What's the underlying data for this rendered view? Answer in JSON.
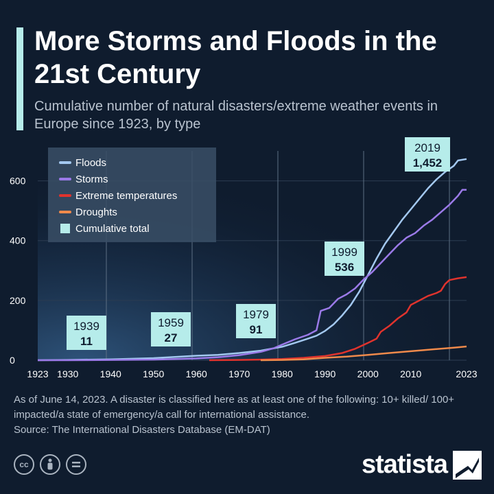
{
  "title": "More Storms and Floods in the 21st Century",
  "subtitle": "Cumulative number of natural disasters/extreme weather events in Europe since 1923, by type",
  "footnote": "As of June 14, 2023. A disaster is classified here as at least one of the following: 10+ killed/ 100+ impacted/a state of emergency/a call for international assistance.",
  "source": "Source: The International Disasters Database (EM-DAT)",
  "icons": [
    "cc-icon",
    "attribution-icon",
    "no-derivatives-icon"
  ],
  "brand": {
    "name": "statista"
  },
  "colors": {
    "background": "#0f1c2e",
    "accent": "#b6ecea",
    "floods": "#a3c8f0",
    "storms": "#9b7ae8",
    "extreme_temperatures": "#e0332d",
    "droughts": "#f08a4b",
    "cumulative_total": "#b6ecea"
  },
  "chart_data": {
    "type": "line",
    "xlabel": "",
    "ylabel": "",
    "xlim": [
      1923,
      2023
    ],
    "ylim": [
      0,
      700
    ],
    "x_ticks": [
      "1923",
      "1930",
      "1940",
      "1950",
      "1960",
      "1970",
      "1980",
      "1990",
      "2000",
      "2010",
      "2023"
    ],
    "x_tick_values": [
      1923,
      1930,
      1940,
      1950,
      1960,
      1970,
      1980,
      1990,
      2000,
      2010,
      2023
    ],
    "y_ticks": [
      "0",
      "200",
      "400",
      "600"
    ],
    "y_tick_values": [
      0,
      200,
      400,
      600
    ],
    "grid": true,
    "legend_position": "top-left",
    "legend": [
      "Floods",
      "Storms",
      "Extreme temperatures",
      "Droughts",
      "Cumulative total"
    ],
    "series": [
      {
        "name": "Floods",
        "color": "#a3c8f0",
        "points": [
          [
            1923,
            0
          ],
          [
            1930,
            1
          ],
          [
            1940,
            3
          ],
          [
            1950,
            7
          ],
          [
            1955,
            11
          ],
          [
            1960,
            15
          ],
          [
            1965,
            18
          ],
          [
            1970,
            24
          ],
          [
            1975,
            32
          ],
          [
            1980,
            45
          ],
          [
            1983,
            58
          ],
          [
            1986,
            72
          ],
          [
            1988,
            82
          ],
          [
            1990,
            98
          ],
          [
            1992,
            120
          ],
          [
            1994,
            150
          ],
          [
            1996,
            185
          ],
          [
            1998,
            230
          ],
          [
            2000,
            285
          ],
          [
            2002,
            340
          ],
          [
            2004,
            390
          ],
          [
            2006,
            430
          ],
          [
            2008,
            470
          ],
          [
            2010,
            505
          ],
          [
            2012,
            540
          ],
          [
            2014,
            575
          ],
          [
            2016,
            605
          ],
          [
            2018,
            630
          ],
          [
            2020,
            650
          ],
          [
            2021,
            668
          ],
          [
            2023,
            673
          ]
        ]
      },
      {
        "name": "Storms",
        "color": "#9b7ae8",
        "points": [
          [
            1923,
            0
          ],
          [
            1930,
            0
          ],
          [
            1940,
            1
          ],
          [
            1950,
            2
          ],
          [
            1955,
            4
          ],
          [
            1960,
            6
          ],
          [
            1965,
            10
          ],
          [
            1970,
            17
          ],
          [
            1975,
            28
          ],
          [
            1978,
            40
          ],
          [
            1980,
            52
          ],
          [
            1983,
            70
          ],
          [
            1986,
            85
          ],
          [
            1988,
            100
          ],
          [
            1989,
            165
          ],
          [
            1991,
            175
          ],
          [
            1993,
            205
          ],
          [
            1995,
            220
          ],
          [
            1997,
            240
          ],
          [
            1999,
            270
          ],
          [
            2001,
            295
          ],
          [
            2003,
            325
          ],
          [
            2005,
            355
          ],
          [
            2007,
            385
          ],
          [
            2009,
            410
          ],
          [
            2011,
            425
          ],
          [
            2013,
            450
          ],
          [
            2015,
            470
          ],
          [
            2017,
            495
          ],
          [
            2019,
            520
          ],
          [
            2021,
            550
          ],
          [
            2022,
            570
          ],
          [
            2023,
            570
          ]
        ]
      },
      {
        "name": "Extreme temperatures",
        "color": "#e0332d",
        "points": [
          [
            1963,
            0
          ],
          [
            1970,
            1
          ],
          [
            1975,
            2
          ],
          [
            1980,
            4
          ],
          [
            1985,
            8
          ],
          [
            1990,
            14
          ],
          [
            1994,
            24
          ],
          [
            1997,
            38
          ],
          [
            2000,
            58
          ],
          [
            2002,
            72
          ],
          [
            2003,
            95
          ],
          [
            2005,
            115
          ],
          [
            2007,
            140
          ],
          [
            2009,
            160
          ],
          [
            2010,
            185
          ],
          [
            2012,
            200
          ],
          [
            2014,
            215
          ],
          [
            2016,
            225
          ],
          [
            2017,
            232
          ],
          [
            2018,
            255
          ],
          [
            2019,
            268
          ],
          [
            2021,
            274
          ],
          [
            2023,
            278
          ]
        ]
      },
      {
        "name": "Droughts",
        "color": "#f08a4b",
        "points": [
          [
            1975,
            0
          ],
          [
            1980,
            1
          ],
          [
            1985,
            3
          ],
          [
            1990,
            8
          ],
          [
            1995,
            12
          ],
          [
            2000,
            18
          ],
          [
            2005,
            24
          ],
          [
            2010,
            30
          ],
          [
            2015,
            36
          ],
          [
            2020,
            42
          ],
          [
            2023,
            46
          ]
        ]
      }
    ],
    "annotations": [
      {
        "year": "1939",
        "value": "11"
      },
      {
        "year": "1959",
        "value": "27"
      },
      {
        "year": "1979",
        "value": "91"
      },
      {
        "year": "1999",
        "value": "536"
      },
      {
        "year": "2019",
        "value": "1,452"
      }
    ]
  }
}
